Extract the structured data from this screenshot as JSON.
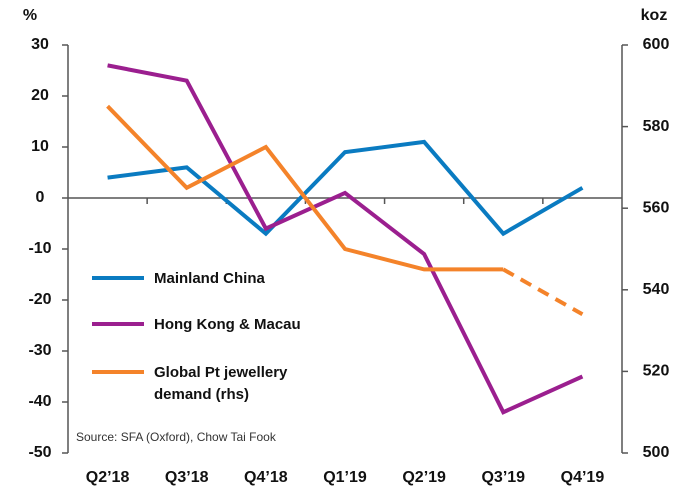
{
  "chart_data": {
    "type": "line",
    "ylabel": "%",
    "y2label": "koz",
    "categories": [
      "Q2’18",
      "Q3’18",
      "Q4’18",
      "Q1’19",
      "Q2’19",
      "Q3’19",
      "Q4’19"
    ],
    "series": [
      {
        "name": "Mainland China",
        "color": "#0a7bc1",
        "values": [
          4,
          6,
          -7,
          9,
          11,
          -7,
          2
        ]
      },
      {
        "name": "Hong Kong & Macau",
        "color": "#9b1f8f",
        "values": [
          26,
          23,
          -6,
          1,
          -11,
          -42,
          -35
        ]
      },
      {
        "name": "Global Pt jewellery demand (rhs)",
        "color": "#f4832a",
        "axis": "y2",
        "values": [
          585,
          565,
          575,
          550,
          545,
          545,
          534
        ],
        "dashed_from": 5
      }
    ],
    "ylim": [
      -50,
      30
    ],
    "yticks": [
      -50,
      -40,
      -30,
      -20,
      -10,
      0,
      10,
      20,
      30
    ],
    "y2lim": [
      500,
      600
    ],
    "y2ticks": [
      500,
      520,
      540,
      560,
      580,
      600
    ],
    "source": "Source: SFA (Oxford), Chow Tai Fook"
  }
}
